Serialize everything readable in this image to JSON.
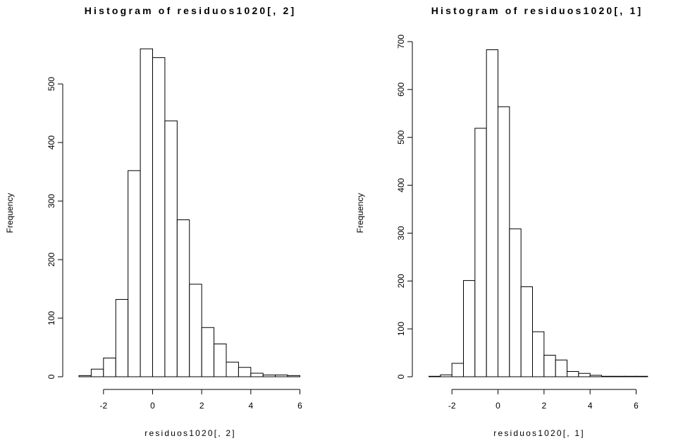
{
  "chart_data": [
    {
      "type": "bar",
      "title": "Histogram of residuos1020[, 2]",
      "xlabel": "residuos1020[, 2]",
      "ylabel": "Frequency",
      "bin_width": 0.5,
      "bin_starts": [
        -3,
        -2.5,
        -2,
        -1.5,
        -1,
        -0.5,
        0,
        0.5,
        1,
        1.5,
        2,
        2.5,
        3,
        3.5,
        4,
        4.5,
        5,
        5.5
      ],
      "values": [
        2,
        13,
        32,
        132,
        352,
        560,
        545,
        437,
        268,
        158,
        84,
        56,
        25,
        16,
        6,
        3,
        3,
        2
      ],
      "xlim": [
        -3,
        6
      ],
      "ylim": [
        0,
        560
      ],
      "x_ticks": [
        -2,
        0,
        2,
        4,
        6
      ],
      "x_tick_labels": [
        "-2",
        "0",
        "2",
        "4",
        "6"
      ],
      "y_ticks": [
        0,
        100,
        200,
        300,
        400,
        500
      ],
      "y_tick_labels": [
        "0",
        "100",
        "200",
        "300",
        "400",
        "500"
      ]
    },
    {
      "type": "bar",
      "title": "Histogram of residuos1020[, 1]",
      "xlabel": "residuos1020[, 1]",
      "ylabel": "Frequency",
      "bin_width": 0.5,
      "bin_starts": [
        -3,
        -2.5,
        -2,
        -1.5,
        -1,
        -0.5,
        0,
        0.5,
        1,
        1.5,
        2,
        2.5,
        3,
        3.5,
        4,
        4.5,
        5,
        5.5,
        6
      ],
      "values": [
        1,
        4,
        28,
        201,
        519,
        683,
        564,
        309,
        188,
        94,
        45,
        35,
        11,
        7,
        3,
        1,
        1,
        1,
        1
      ],
      "xlim": [
        -3,
        6.5
      ],
      "ylim": [
        0,
        700
      ],
      "x_ticks": [
        -2,
        0,
        2,
        4,
        6
      ],
      "x_tick_labels": [
        "-2",
        "0",
        "2",
        "4",
        "6"
      ],
      "y_ticks": [
        0,
        100,
        200,
        300,
        400,
        500,
        600,
        700
      ],
      "y_tick_labels": [
        "0",
        "100",
        "200",
        "300",
        "400",
        "500",
        "600",
        "700"
      ]
    }
  ]
}
